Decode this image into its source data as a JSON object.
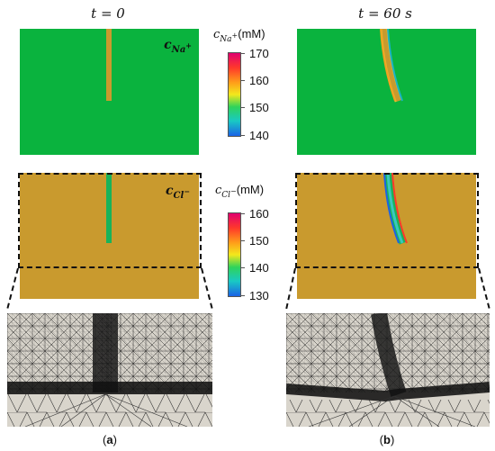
{
  "panel_a": {
    "time": "t = 0",
    "caption_open": "(",
    "caption_letter": "a",
    "caption_close": ")"
  },
  "panel_b": {
    "time": "t = 60 s",
    "caption_open": "(",
    "caption_letter": "b",
    "caption_close": ")"
  },
  "labels": {
    "na_field": "c",
    "na_sub": "Na",
    "na_sup": "+",
    "cl_field": "c",
    "cl_sub": "Cl",
    "cl_sup": "−"
  },
  "colorbar_na": {
    "title_c": "c",
    "title_sub": "Na",
    "title_sup": "+",
    "unit": "(mM)",
    "ticks": [
      "170",
      "160",
      "150",
      "140"
    ],
    "range": [
      140,
      170
    ]
  },
  "colorbar_cl": {
    "title_c": "c",
    "title_sub": "Cl",
    "title_sup": "−",
    "unit": "(mM)",
    "ticks": [
      "160",
      "150",
      "140",
      "130"
    ],
    "range": [
      130,
      160
    ]
  },
  "colors": {
    "bulk_na": "#0ab33e",
    "bulk_cl": "#c99a2e",
    "mesh_bg": "#d9d5cc",
    "mesh_line": "#1a1a1a"
  }
}
